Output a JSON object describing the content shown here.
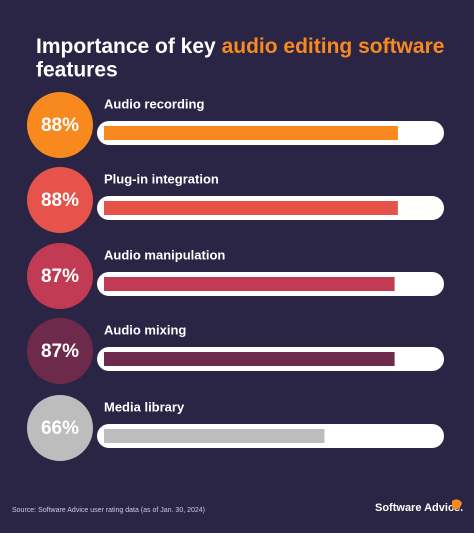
{
  "chart_data": {
    "type": "bar",
    "title": {
      "prefix": "Importance of key",
      "highlight": "audio editing software",
      "suffix": "features"
    },
    "categories": [
      "Audio recording",
      "Plug-in integration",
      "Audio manipulation",
      "Audio mixing",
      "Media library"
    ],
    "values": [
      88,
      88,
      87,
      87,
      66
    ],
    "value_labels": [
      "88%",
      "88%",
      "87%",
      "87%",
      "66%"
    ],
    "colors": [
      "#f7891f",
      "#e5534b",
      "#c23b54",
      "#6e2a4a",
      "#bdbdbd"
    ],
    "xlim": [
      0,
      100
    ],
    "source": "Source: Software Advice user rating data (as of Jan. 30, 2024)",
    "brand": "Software Advice."
  }
}
